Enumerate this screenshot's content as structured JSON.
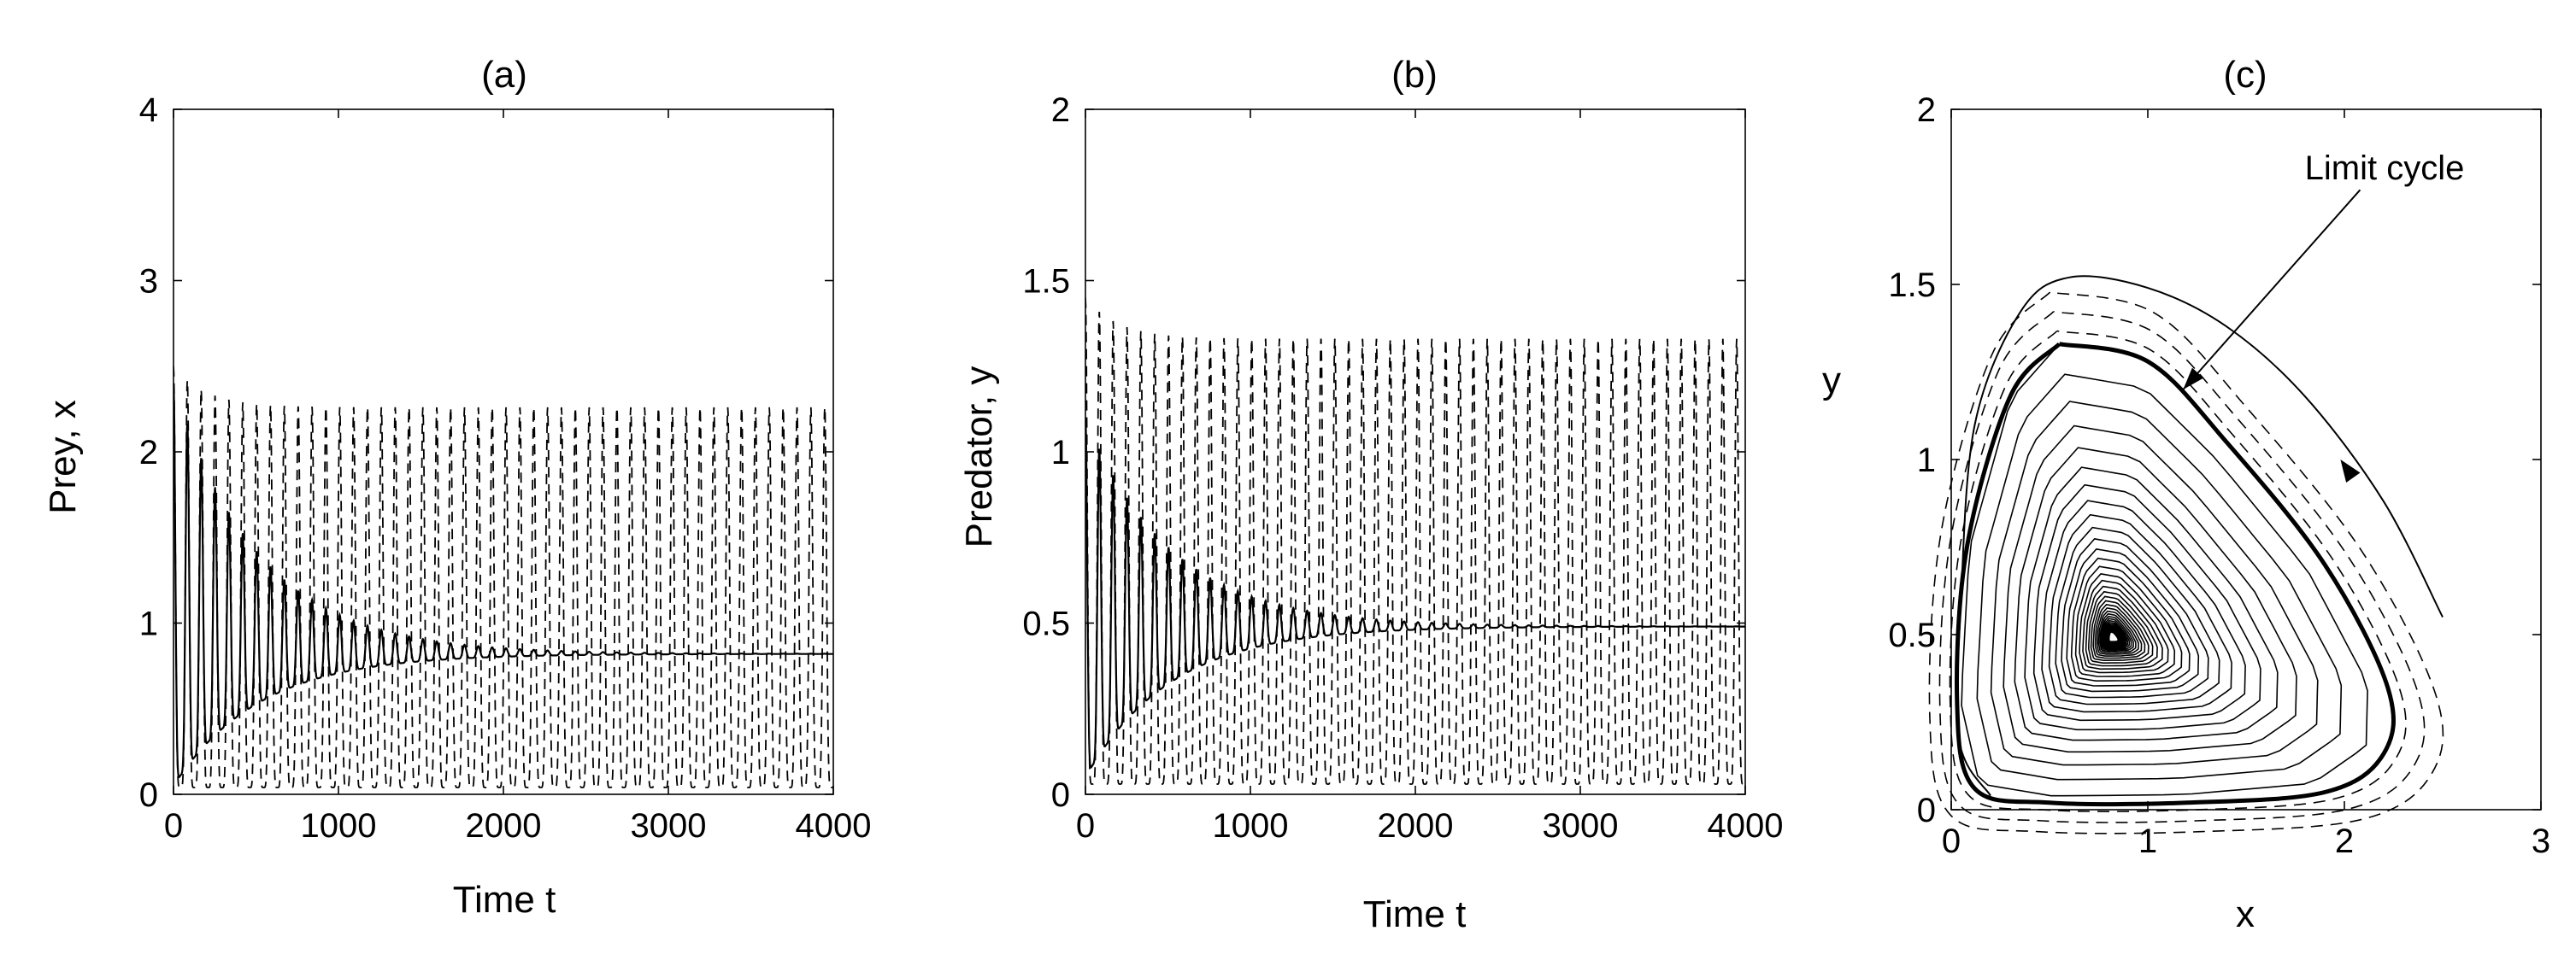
{
  "chart_data": [
    {
      "type": "line",
      "panel_label": "(a)",
      "xlabel": "Time t",
      "ylabel": "Prey, x",
      "xlim": [
        0,
        4000
      ],
      "ylim": [
        0,
        4
      ],
      "xticks": [
        0,
        1000,
        2000,
        3000,
        4000
      ],
      "yticks": [
        0,
        1,
        2,
        3,
        4
      ],
      "grid": false,
      "series": [
        {
          "style": "dashed",
          "period": 84,
          "min": 0.04,
          "max": 2.26,
          "initial_peak": 2.5,
          "settled_from": 600
        },
        {
          "style": "solid",
          "period": 84,
          "equilibrium": 0.82,
          "initial_max": 2.4,
          "initial_min": 0.05,
          "decay_until": 2600
        }
      ]
    },
    {
      "type": "line",
      "panel_label": "(b)",
      "xlabel": "Time t",
      "ylabel": "Predator, y",
      "xlim": [
        0,
        4000
      ],
      "ylim": [
        0,
        2
      ],
      "xticks": [
        0,
        1000,
        2000,
        3000,
        4000
      ],
      "yticks": [
        0,
        0.5,
        1,
        1.5,
        2
      ],
      "grid": false,
      "series": [
        {
          "style": "dashed",
          "period": 84,
          "min": 0.03,
          "max": 1.33,
          "initial_peak": 1.45,
          "settled_from": 600
        },
        {
          "style": "solid",
          "period": 84,
          "equilibrium": 0.49,
          "initial_max": 1.1,
          "initial_min": 0.05,
          "decay_until": 2600
        }
      ]
    },
    {
      "type": "line",
      "panel_label": "(c)",
      "xlabel": "x",
      "ylabel": "y",
      "xlim": [
        0,
        3
      ],
      "ylim": [
        0,
        2
      ],
      "xticks": [
        0,
        1,
        2,
        3
      ],
      "yticks": [
        0,
        0.5,
        1,
        1.5,
        2
      ],
      "grid": false,
      "equilibrium": {
        "x": 0.82,
        "y": 0.49
      },
      "limit_cycle": [
        [
          0.55,
          1.33
        ],
        [
          0.3,
          1.18
        ],
        [
          0.08,
          0.75
        ],
        [
          0.03,
          0.3
        ],
        [
          0.12,
          0.06
        ],
        [
          0.5,
          0.02
        ],
        [
          1.2,
          0.02
        ],
        [
          1.9,
          0.05
        ],
        [
          2.2,
          0.16
        ],
        [
          2.22,
          0.35
        ],
        [
          1.9,
          0.7
        ],
        [
          1.4,
          1.05
        ],
        [
          1.0,
          1.28
        ],
        [
          0.55,
          1.33
        ]
      ],
      "spiral": {
        "turns": 36,
        "radius_start": 1.0,
        "radius_end": 0.02
      },
      "outer_trajectory": [
        [
          2.5,
          0.55
        ],
        [
          2.2,
          0.88
        ],
        [
          1.8,
          1.18
        ],
        [
          1.4,
          1.38
        ],
        [
          1.0,
          1.49
        ],
        [
          0.6,
          1.52
        ],
        [
          0.35,
          1.42
        ],
        [
          0.12,
          1.1
        ],
        [
          0.05,
          0.6
        ],
        [
          0.04,
          0.2
        ],
        [
          0.2,
          0.04
        ]
      ],
      "dashed_offsets": [
        0.02,
        0.05,
        0.08
      ],
      "annotations": [
        {
          "text": "Limit cycle",
          "x": 1.95,
          "y": 1.83
        }
      ]
    }
  ]
}
